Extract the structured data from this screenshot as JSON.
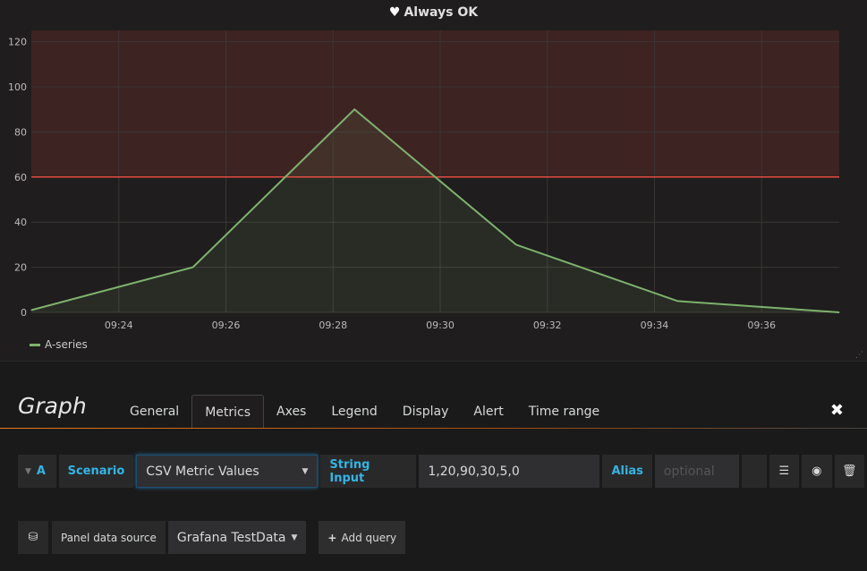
{
  "panel": {
    "title": "Always OK",
    "title_icon": "heart-icon"
  },
  "chart_data": {
    "type": "line",
    "x": [
      "09:22:22",
      "09:25:23",
      "09:28:24",
      "09:31:25",
      "09:34:26",
      "09:37:27"
    ],
    "series": [
      {
        "name": "A-series",
        "values": [
          1,
          20,
          90,
          30,
          5,
          0
        ],
        "color": "#7eb26d"
      }
    ],
    "ylim": [
      0,
      125
    ],
    "yticks": [
      0,
      20,
      40,
      60,
      80,
      100,
      120
    ],
    "xticks": [
      "09:24",
      "09:26",
      "09:28",
      "09:30",
      "09:32",
      "09:34",
      "09:36"
    ],
    "threshold": {
      "value": 60,
      "op": "gt",
      "color": "#e24d42"
    },
    "grid": true,
    "legend": "bottom-left"
  },
  "editor": {
    "title": "Graph",
    "tabs": [
      "General",
      "Metrics",
      "Axes",
      "Legend",
      "Display",
      "Alert",
      "Time range"
    ],
    "active_tab": "Metrics",
    "query": {
      "ref": "A",
      "scenario_label": "Scenario",
      "scenario_value": "CSV Metric Values",
      "string_input_label": "String Input",
      "string_input_value": "1,20,90,30,5,0",
      "alias_label": "Alias",
      "alias_placeholder": "optional"
    },
    "datasource": {
      "label": "Panel data source",
      "value": "Grafana TestData",
      "add_query": "Add query"
    }
  }
}
